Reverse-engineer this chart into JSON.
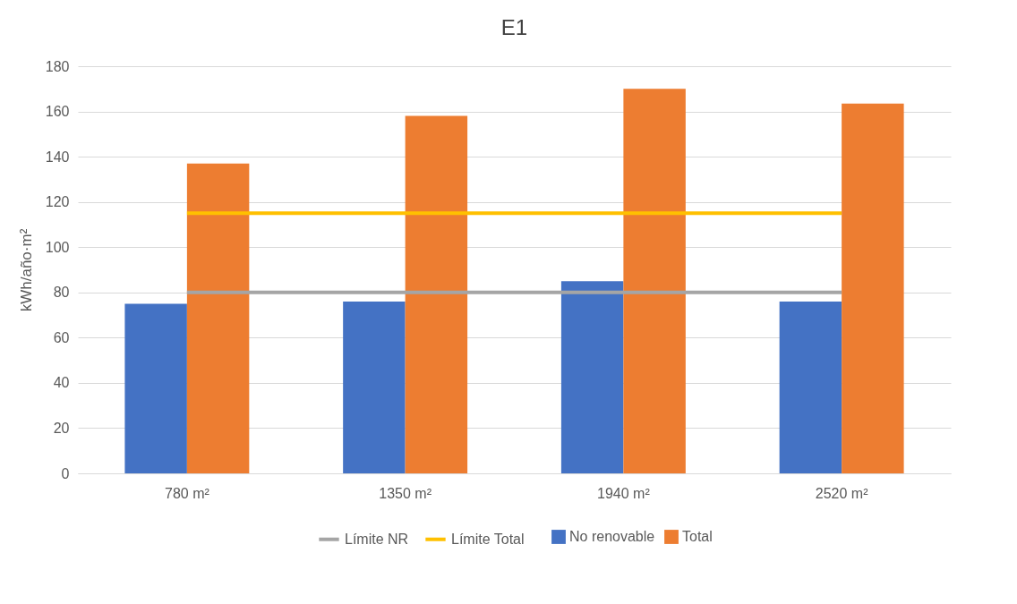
{
  "chart_data": {
    "type": "bar",
    "title": "E1",
    "ylabel": "kWh/año·m²",
    "categories": [
      "780 m²",
      "1350 m²",
      "1940 m²",
      "2520 m²"
    ],
    "series": [
      {
        "name": "No renovable",
        "color": "#4472c4",
        "values": [
          75,
          76,
          85,
          76
        ]
      },
      {
        "name": "Total",
        "color": "#ed7d31",
        "values": [
          137,
          158,
          170,
          163.5
        ]
      },
      {
        "name": "Límite NR",
        "type": "line",
        "color": "#a5a5a5",
        "values": [
          80,
          80,
          80,
          80
        ]
      },
      {
        "name": "Límite Total",
        "type": "line",
        "color": "#ffc000",
        "values": [
          115,
          115,
          115,
          115
        ]
      }
    ],
    "ylim": [
      0,
      180
    ],
    "yticks": [
      0,
      20,
      40,
      60,
      80,
      100,
      120,
      140,
      160,
      180
    ],
    "grid": "y",
    "legend": "bottom"
  }
}
